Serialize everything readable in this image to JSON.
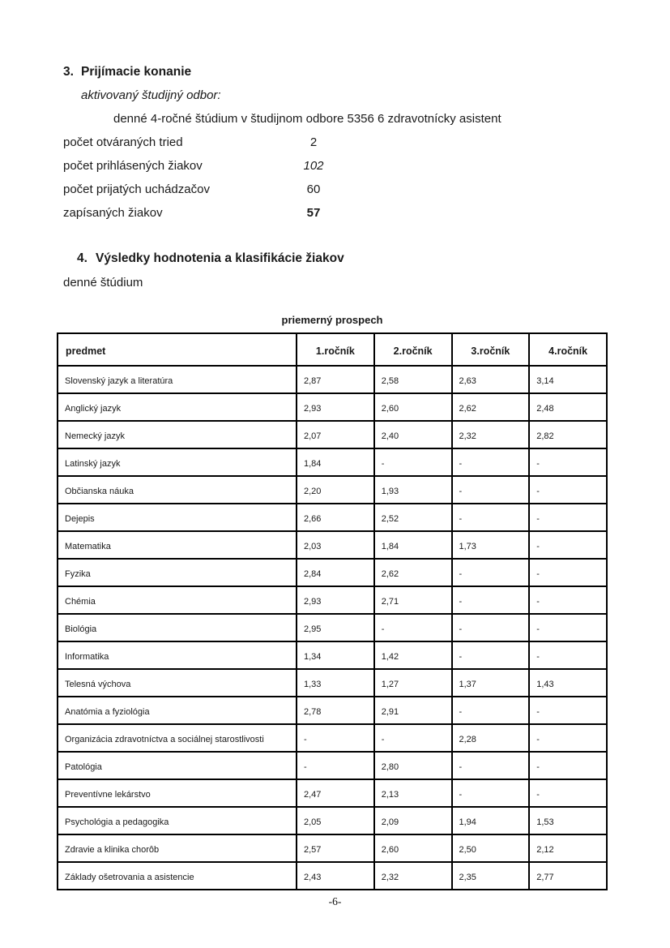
{
  "section3": {
    "heading_number": "3.",
    "heading": "Prijímacie konanie",
    "subheading": "aktivovaný študijný odbor:",
    "program_line": "denné 4-ročné štúdium v študijnom odbore 5356 6 zdravotnícky asistent",
    "stats": [
      {
        "label": "počet otváraných tried",
        "value": "2"
      },
      {
        "label": "počet prihlásených žiakov",
        "value": "102"
      },
      {
        "label": "počet prijatých uchádzačov",
        "value": "60"
      },
      {
        "label": "zapísaných žiakov",
        "value": "57"
      }
    ]
  },
  "section4": {
    "heading_number": "4.",
    "heading": "Výsledky hodnotenia a klasifikácie žiakov",
    "subheading": "denné štúdium",
    "table_title": "priemerný prospech"
  },
  "table": {
    "columns": [
      "predmet",
      "1.ročník",
      "2.ročník",
      "3.ročník",
      "4.ročník"
    ],
    "rows": [
      {
        "predmet": "Slovenský jazyk a literatúra",
        "values": [
          "2,87",
          "2,58",
          "2,63",
          "3,14"
        ]
      },
      {
        "predmet": "Anglický jazyk",
        "values": [
          "2,93",
          "2,60",
          "2,62",
          "2,48"
        ]
      },
      {
        "predmet": "Nemecký jazyk",
        "values": [
          "2,07",
          "2,40",
          "2,32",
          "2,82"
        ]
      },
      {
        "predmet": "Latinský jazyk",
        "values": [
          "1,84",
          "-",
          "-",
          "-"
        ]
      },
      {
        "predmet": "Občianska náuka",
        "values": [
          "2,20",
          "1,93",
          "-",
          "-"
        ]
      },
      {
        "predmet": "Dejepis",
        "values": [
          "2,66",
          "2,52",
          "-",
          "-"
        ]
      },
      {
        "predmet": "Matematika",
        "values": [
          "2,03",
          "1,84",
          "1,73",
          "-"
        ]
      },
      {
        "predmet": "Fyzika",
        "values": [
          "2,84",
          "2,62",
          "-",
          "-"
        ]
      },
      {
        "predmet": "Chémia",
        "values": [
          "2,93",
          "2,71",
          "-",
          "-"
        ]
      },
      {
        "predmet": "Biológia",
        "values": [
          "2,95",
          "-",
          "-",
          "-"
        ]
      },
      {
        "predmet": "Informatika",
        "values": [
          "1,34",
          "1,42",
          "-",
          "-"
        ]
      },
      {
        "predmet": "Telesná výchova",
        "values": [
          "1,33",
          "1,27",
          "1,37",
          "1,43"
        ]
      },
      {
        "predmet": "Anatómia a fyziológia",
        "values": [
          "2,78",
          "2,91",
          "-",
          "-"
        ]
      },
      {
        "predmet": "Organizácia zdravotníctva a sociálnej starostlivosti",
        "values": [
          "-",
          "-",
          "2,28",
          "-"
        ]
      },
      {
        "predmet": "Patológia",
        "values": [
          "-",
          "2,80",
          "-",
          "-"
        ]
      },
      {
        "predmet": "Preventívne lekárstvo",
        "values": [
          "2,47",
          "2,13",
          "-",
          "-"
        ]
      },
      {
        "predmet": "Psychológia a pedagogika",
        "values": [
          "2,05",
          "2,09",
          "1,94",
          "1,53"
        ]
      },
      {
        "predmet": "Zdravie a klinika chorôb",
        "values": [
          "2,57",
          "2,60",
          "2,50",
          "2,12"
        ]
      },
      {
        "predmet": "Základy ošetrovania a asistencie",
        "values": [
          "2,43",
          "2,32",
          "2,35",
          "2,77"
        ]
      }
    ]
  },
  "footer": {
    "page_number": "-6-"
  }
}
